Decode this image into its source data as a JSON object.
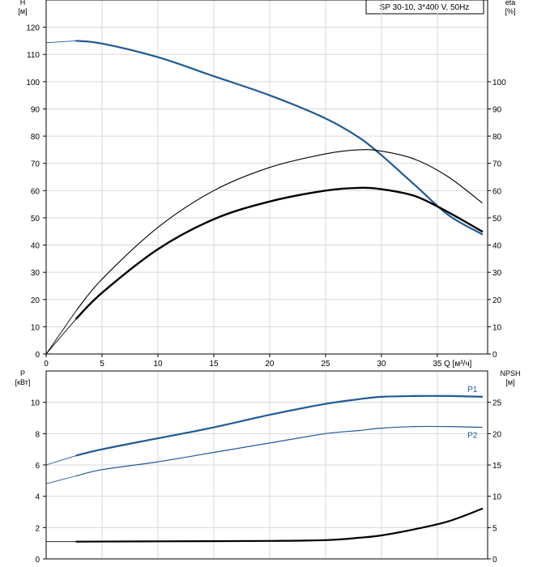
{
  "colors": {
    "blue": "#1f5a96",
    "black": "#000000",
    "grid": "#d8d8d8"
  },
  "chart_data": [
    {
      "type": "line",
      "title": "SP 30-10, 3*400 V, 50Hz",
      "xlabel": "Q [м³/ч]",
      "ylabel_left": "H [м]",
      "ylabel_right": "eta [%]",
      "x_ticks": [
        "0",
        "5",
        "10",
        "15",
        "20",
        "25",
        "30",
        "35"
      ],
      "y_ticks_left": [
        "0",
        "10",
        "20",
        "30",
        "40",
        "50",
        "60",
        "70",
        "80",
        "90",
        "100",
        "110",
        "120"
      ],
      "y_ticks_right": [
        "0",
        "10",
        "20",
        "30",
        "40",
        "50",
        "60",
        "70",
        "80",
        "90",
        "100"
      ],
      "xlim": [
        0,
        39.5
      ],
      "ylim": [
        0,
        130
      ],
      "grid": true,
      "series": [
        {
          "color": "blue",
          "width": 2.2,
          "points": [
            [
              0,
              114.3
            ],
            [
              2.7,
              115
            ],
            [
              5,
              114
            ],
            [
              10,
              109
            ],
            [
              15,
              102
            ],
            [
              20,
              95
            ],
            [
              25,
              86.5
            ],
            [
              28,
              79.5
            ],
            [
              30,
              73
            ],
            [
              33,
              62
            ],
            [
              36,
              51
            ],
            [
              39,
              44
            ]
          ]
        },
        {
          "color": "black",
          "width": 1.1,
          "points": [
            [
              0,
              0
            ],
            [
              2.7,
              16
            ],
            [
              5,
              27.5
            ],
            [
              10,
              46.5
            ],
            [
              15,
              60
            ],
            [
              20,
              68.5
            ],
            [
              25,
              73.5
            ],
            [
              28,
              75
            ],
            [
              30,
              74.5
            ],
            [
              33,
              71.5
            ],
            [
              36,
              65
            ],
            [
              39,
              55.5
            ]
          ]
        },
        {
          "color": "black",
          "width": 2.4,
          "points": [
            [
              0,
              0
            ],
            [
              2.7,
              13
            ],
            [
              5,
              22.5
            ],
            [
              10,
              38.5
            ],
            [
              15,
              49.5
            ],
            [
              20,
              56
            ],
            [
              25,
              60
            ],
            [
              28,
              61
            ],
            [
              30,
              60.5
            ],
            [
              33,
              58
            ],
            [
              36,
              52
            ],
            [
              39,
              45
            ]
          ]
        }
      ]
    },
    {
      "type": "line",
      "xlabel": "",
      "ylabel_left": "P [кВт]",
      "ylabel_right": "NPSH [м]",
      "y_ticks_left": [
        "0",
        "2",
        "4",
        "6",
        "8",
        "10"
      ],
      "y_ticks_right": [
        "0",
        "5",
        "10",
        "15",
        "20",
        "25"
      ],
      "xlim": [
        0,
        39.5
      ],
      "ylim": [
        0,
        12
      ],
      "grid": true,
      "series": [
        {
          "name": "P1",
          "color": "blue",
          "width": 2.2,
          "points": [
            [
              0,
              6
            ],
            [
              2.7,
              6.6
            ],
            [
              5,
              7
            ],
            [
              10,
              7.7
            ],
            [
              15,
              8.4
            ],
            [
              20,
              9.2
            ],
            [
              25,
              9.9
            ],
            [
              28,
              10.2
            ],
            [
              30,
              10.35
            ],
            [
              33,
              10.4
            ],
            [
              36,
              10.4
            ],
            [
              39,
              10.35
            ]
          ]
        },
        {
          "name": "P2",
          "color": "blue",
          "width": 1.2,
          "points": [
            [
              0,
              4.8
            ],
            [
              2.7,
              5.3
            ],
            [
              5,
              5.7
            ],
            [
              10,
              6.2
            ],
            [
              15,
              6.8
            ],
            [
              20,
              7.4
            ],
            [
              25,
              8
            ],
            [
              28,
              8.2
            ],
            [
              30,
              8.35
            ],
            [
              33,
              8.45
            ],
            [
              36,
              8.45
            ],
            [
              39,
              8.4
            ]
          ]
        },
        {
          "color": "black",
          "width": 2.2,
          "points": [
            [
              0,
              1.1
            ],
            [
              2.7,
              1.1
            ],
            [
              10,
              1.12
            ],
            [
              20,
              1.15
            ],
            [
              25,
              1.2
            ],
            [
              28,
              1.35
            ],
            [
              30,
              1.5
            ],
            [
              33,
              1.9
            ],
            [
              36,
              2.4
            ],
            [
              39,
              3.2
            ]
          ]
        }
      ]
    }
  ]
}
